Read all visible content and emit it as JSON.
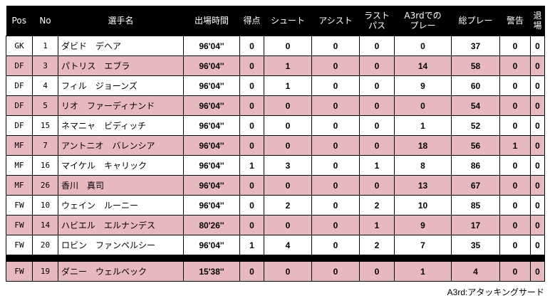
{
  "headers": {
    "pos": "Pos",
    "no": "No",
    "name": "選手名",
    "time": "出場時間",
    "goals": "得点",
    "shots": "シュート",
    "assists": "アシスト",
    "lastpass_line1": "ラスト",
    "lastpass_line2": "パス",
    "a3rd_line1": "A3rdでの",
    "a3rd_line2": "プレー",
    "total": "総プレー",
    "yellow": "警告",
    "red": "退場"
  },
  "players": [
    {
      "pos": "GK",
      "no": "1",
      "name": "ダビド　デヘア",
      "time": "96'04''",
      "goals": "0",
      "shots": "0",
      "assists": "0",
      "lastpass": "0",
      "a3rd": "0",
      "total": "37",
      "yellow": "0",
      "red": "0"
    },
    {
      "pos": "DF",
      "no": "3",
      "name": "パトリス　エブラ",
      "time": "96'04''",
      "goals": "0",
      "shots": "1",
      "assists": "0",
      "lastpass": "0",
      "a3rd": "14",
      "total": "58",
      "yellow": "0",
      "red": "0"
    },
    {
      "pos": "DF",
      "no": "4",
      "name": "フィル　ジョーンズ",
      "time": "96'04''",
      "goals": "0",
      "shots": "1",
      "assists": "0",
      "lastpass": "0",
      "a3rd": "9",
      "total": "60",
      "yellow": "0",
      "red": "0"
    },
    {
      "pos": "DF",
      "no": "5",
      "name": "リオ　ファーディナンド",
      "time": "96'04''",
      "goals": "0",
      "shots": "0",
      "assists": "0",
      "lastpass": "0",
      "a3rd": "0",
      "total": "54",
      "yellow": "0",
      "red": "0"
    },
    {
      "pos": "DF",
      "no": "15",
      "name": "ネマニャ　ビディッチ",
      "time": "96'04''",
      "goals": "0",
      "shots": "0",
      "assists": "0",
      "lastpass": "0",
      "a3rd": "1",
      "total": "52",
      "yellow": "0",
      "red": "0"
    },
    {
      "pos": "MF",
      "no": "7",
      "name": "アントニオ　バレンシア",
      "time": "96'04''",
      "goals": "0",
      "shots": "0",
      "assists": "0",
      "lastpass": "0",
      "a3rd": "18",
      "total": "56",
      "yellow": "1",
      "red": "0"
    },
    {
      "pos": "MF",
      "no": "16",
      "name": "マイケル　キャリック",
      "time": "96'04''",
      "goals": "1",
      "shots": "3",
      "assists": "0",
      "lastpass": "1",
      "a3rd": "8",
      "total": "86",
      "yellow": "0",
      "red": "0"
    },
    {
      "pos": "MF",
      "no": "26",
      "name": "香川　真司",
      "time": "96'04''",
      "goals": "0",
      "shots": "0",
      "assists": "0",
      "lastpass": "0",
      "a3rd": "13",
      "total": "67",
      "yellow": "0",
      "red": "0"
    },
    {
      "pos": "FW",
      "no": "10",
      "name": "ウェイン　ルーニー",
      "time": "96'04''",
      "goals": "0",
      "shots": "2",
      "assists": "0",
      "lastpass": "2",
      "a3rd": "10",
      "total": "85",
      "yellow": "0",
      "red": "0"
    },
    {
      "pos": "FW",
      "no": "14",
      "name": "ハビエル　エルナンデス",
      "time": "80'26''",
      "goals": "0",
      "shots": "0",
      "assists": "0",
      "lastpass": "1",
      "a3rd": "9",
      "total": "17",
      "yellow": "0",
      "red": "0"
    },
    {
      "pos": "FW",
      "no": "20",
      "name": "ロビン　ファンペルシー",
      "time": "96'04''",
      "goals": "1",
      "shots": "4",
      "assists": "0",
      "lastpass": "2",
      "a3rd": "7",
      "total": "35",
      "yellow": "0",
      "red": "0"
    }
  ],
  "substitutes": [
    {
      "pos": "FW",
      "no": "19",
      "name": "ダニー　ウェルベック",
      "time": "15'38''",
      "goals": "0",
      "shots": "0",
      "assists": "0",
      "lastpass": "0",
      "a3rd": "1",
      "total": "4",
      "yellow": "0",
      "red": "0"
    }
  ],
  "footnote": "A3rd:アタッキングサード",
  "colors": {
    "header_bg": "#000000",
    "row_alt": "#e7b9bf",
    "row": "#ffffff"
  }
}
